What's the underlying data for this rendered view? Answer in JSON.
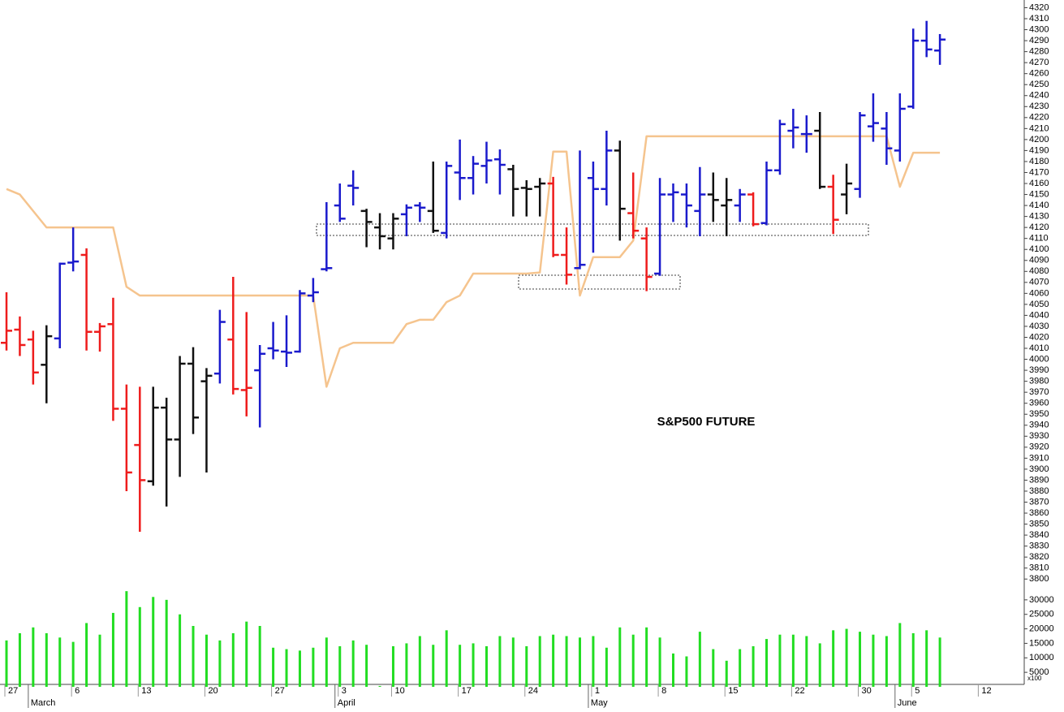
{
  "chart_data": {
    "type": "ohlc",
    "title": "S&P500 FUTURE",
    "categories": [
      "27",
      null,
      null,
      null,
      null,
      "6",
      null,
      null,
      null,
      null,
      "13",
      null,
      null,
      null,
      null,
      "20",
      null,
      null,
      null,
      null,
      "27",
      null,
      null,
      null,
      null,
      "3",
      null,
      null,
      null,
      "10",
      null,
      null,
      null,
      null,
      "17",
      null,
      null,
      null,
      null,
      "24",
      null,
      null,
      null,
      null,
      "1",
      null,
      null,
      null,
      null,
      "8",
      null,
      null,
      null,
      null,
      "15",
      null,
      null,
      null,
      null,
      "22",
      null,
      null,
      null,
      null,
      "30",
      null,
      null,
      null,
      "5",
      null,
      null,
      null,
      null,
      "12",
      null,
      null,
      null
    ],
    "month_labels": [
      null,
      null,
      "March",
      null,
      null,
      null,
      null,
      null,
      null,
      null,
      null,
      null,
      null,
      null,
      null,
      null,
      null,
      null,
      null,
      null,
      null,
      null,
      null,
      null,
      null,
      "April",
      null,
      null,
      null,
      null,
      null,
      null,
      null,
      null,
      null,
      null,
      null,
      null,
      null,
      null,
      null,
      null,
      null,
      null,
      "May",
      null,
      null,
      null,
      null,
      null,
      null,
      null,
      null,
      null,
      null,
      null,
      null,
      null,
      null,
      null,
      null,
      null,
      null,
      null,
      null,
      null,
      null,
      "June",
      null,
      null,
      null,
      null,
      null,
      null,
      null,
      null,
      null
    ],
    "ylim": [
      3795,
      4327
    ],
    "yticks": [
      3800,
      3810,
      3820,
      3830,
      3840,
      3850,
      3860,
      3870,
      3880,
      3890,
      3900,
      3910,
      3920,
      3930,
      3940,
      3950,
      3960,
      3970,
      3980,
      3990,
      4000,
      4010,
      4020,
      4030,
      4040,
      4050,
      4060,
      4070,
      4080,
      4090,
      4100,
      4110,
      4120,
      4130,
      4140,
      4150,
      4160,
      4170,
      4180,
      4190,
      4200,
      4210,
      4220,
      4230,
      4240,
      4250,
      4260,
      4270,
      4280,
      4290,
      4300,
      4310,
      4320
    ],
    "open": [
      4015,
      4027,
      4018,
      3995,
      4019,
      4088,
      4095,
      4025,
      4032,
      3955,
      3922,
      3889,
      3956,
      3927,
      3996,
      3980,
      3987,
      4018,
      3972,
      3990,
      4010,
      4007,
      4007,
      4058,
      4082,
      4140,
      4158,
      4135,
      4120,
      4110,
      4132,
      4140,
      4135,
      4115,
      4170,
      4165,
      4176,
      4182,
      4173,
      4156,
      4157,
      4160,
      4095,
      4083,
      4165,
      4155,
      4190,
      4133,
      4110,
      4078,
      4150,
      4150,
      4135,
      4150,
      4140,
      4140,
      4150,
      4124,
      4172,
      4208,
      4205,
      4208,
      4157,
      4150,
      4155,
      4212,
      4210,
      4190,
      4230,
      4290,
      4281,
      null,
      null,
      null,
      null,
      null,
      null
    ],
    "high": [
      4061,
      4039,
      4026,
      4031,
      4088,
      4120,
      4101,
      4033,
      4056,
      3977,
      3975,
      3975,
      3965,
      4003,
      4011,
      3992,
      4045,
      4075,
      4043,
      4013,
      4034,
      4040,
      4063,
      4074,
      4143,
      4160,
      4172,
      4137,
      4133,
      4133,
      4141,
      4143,
      4180,
      4180,
      4200,
      4185,
      4198,
      4191,
      4177,
      4163,
      4165,
      4166,
      4120,
      4190,
      4180,
      4208,
      4199,
      4170,
      4120,
      4165,
      4160,
      4160,
      4175,
      4170,
      4165,
      4155,
      4152,
      4180,
      4218,
      4228,
      4222,
      4225,
      4168,
      4178,
      4225,
      4242,
      4225,
      4242,
      4301,
      4308,
      4296,
      null,
      null,
      null,
      null,
      null,
      null
    ],
    "low": [
      4008,
      4003,
      3977,
      3960,
      4010,
      4080,
      4008,
      4007,
      3944,
      3880,
      3843,
      3885,
      3866,
      3893,
      3932,
      3897,
      3978,
      3968,
      3948,
      3938,
      4000,
      3993,
      4006,
      4052,
      4080,
      4125,
      4140,
      4102,
      4100,
      4100,
      4112,
      4125,
      4115,
      4110,
      4145,
      4150,
      4160,
      4150,
      4130,
      4130,
      4130,
      4093,
      4068,
      4082,
      4097,
      4140,
      4108,
      4110,
      4062,
      4076,
      4125,
      4120,
      4112,
      4125,
      4112,
      4125,
      4121,
      4122,
      4168,
      4192,
      4188,
      4155,
      4114,
      4132,
      4147,
      4198,
      4177,
      4180,
      4228,
      4275,
      4268,
      null,
      null,
      null,
      null,
      null,
      null
    ],
    "close": [
      4026,
      4013,
      3988,
      4021,
      4087,
      4089,
      4025,
      4030,
      3955,
      3897,
      3890,
      3956,
      3927,
      3996,
      3947,
      3985,
      4034,
      3973,
      3974,
      4005,
      4008,
      4006,
      4060,
      4061,
      4083,
      4128,
      4156,
      4125,
      4112,
      4128,
      4138,
      4138,
      4117,
      4176,
      4165,
      4178,
      4181,
      4177,
      4155,
      4155,
      4160,
      4095,
      4077,
      4086,
      4155,
      4190,
      4137,
      4117,
      4075,
      4150,
      4152,
      4140,
      4150,
      4145,
      4145,
      4150,
      4123,
      4172,
      4214,
      4211,
      4205,
      4157,
      4127,
      4160,
      4222,
      4215,
      4192,
      4228,
      4290,
      4282,
      4291,
      null,
      null,
      null,
      null,
      null,
      null
    ],
    "colors": [
      "#ee1c1c",
      "#ee1c1c",
      "#ee1c1c",
      "#111111",
      "#1a1acc",
      "#1a1acc",
      "#ee1c1c",
      "#ee1c1c",
      "#ee1c1c",
      "#ee1c1c",
      "#ee1c1c",
      "#111111",
      "#111111",
      "#111111",
      "#111111",
      "#111111",
      "#1a1acc",
      "#ee1c1c",
      "#ee1c1c",
      "#1a1acc",
      "#1a1acc",
      "#1a1acc",
      "#1a1acc",
      "#1a1acc",
      "#1a1acc",
      "#1a1acc",
      "#1a1acc",
      "#111111",
      "#111111",
      "#111111",
      "#1a1acc",
      "#1a1acc",
      "#111111",
      "#1a1acc",
      "#1a1acc",
      "#1a1acc",
      "#1a1acc",
      "#1a1acc",
      "#111111",
      "#111111",
      "#111111",
      "#ee1c1c",
      "#ee1c1c",
      "#1a1acc",
      "#1a1acc",
      "#1a1acc",
      "#111111",
      "#ee1c1c",
      "#ee1c1c",
      "#1a1acc",
      "#1a1acc",
      "#1a1acc",
      "#1a1acc",
      "#111111",
      "#111111",
      "#1a1acc",
      "#ee1c1c",
      "#1a1acc",
      "#1a1acc",
      "#1a1acc",
      "#1a1acc",
      "#111111",
      "#ee1c1c",
      "#111111",
      "#1a1acc",
      "#1a1acc",
      "#1a1acc",
      "#1a1acc",
      "#1a1acc",
      "#1a1acc",
      "#1a1acc",
      null,
      null,
      null,
      null,
      null,
      null
    ],
    "line": {
      "color": "#f5c48e",
      "values": [
        4155,
        4150,
        4135,
        4120,
        4120,
        4120,
        4120,
        4120,
        4120,
        4066,
        4058,
        4058,
        4058,
        4058,
        4058,
        4058,
        4058,
        4058,
        4058,
        4058,
        4058,
        4058,
        4058,
        4058,
        3975,
        4010,
        4015,
        4015,
        4015,
        4015,
        4032,
        4036,
        4036,
        4052,
        4058,
        4078,
        4078,
        4078,
        4078,
        4078,
        4079,
        4189,
        4189,
        4058,
        4093,
        4093,
        4093,
        4108,
        4203,
        4203,
        4203,
        4203,
        4203,
        4203,
        4203,
        4203,
        4203,
        4203,
        4203,
        4203,
        4203,
        4203,
        4203,
        4203,
        4203,
        4203,
        4203,
        4157,
        4188,
        4188,
        4188,
        null,
        null,
        null,
        null,
        null,
        null
      ]
    },
    "volume": {
      "color": "#22dd22",
      "ylim": [
        0,
        35000
      ],
      "yticks": [
        5000,
        10000,
        15000,
        20000,
        25000,
        30000
      ],
      "unit_label": "x100",
      "values": [
        16000,
        18500,
        20500,
        18500,
        17000,
        15500,
        22000,
        18000,
        25500,
        33000,
        27500,
        31000,
        30000,
        25000,
        21000,
        18000,
        16000,
        18500,
        22500,
        21000,
        13500,
        13000,
        12500,
        13500,
        17000,
        14000,
        16000,
        14500,
        300,
        14000,
        15000,
        17500,
        14500,
        19500,
        14500,
        15000,
        14000,
        17500,
        17000,
        14000,
        17500,
        18000,
        17500,
        17000,
        17500,
        13500,
        20500,
        18000,
        20500,
        17000,
        11500,
        10500,
        19000,
        13000,
        9000,
        13000,
        14000,
        16500,
        18000,
        18000,
        17500,
        15000,
        19500,
        20000,
        19000,
        18000,
        17500,
        22000,
        18500,
        19500,
        17000,
        null,
        null,
        null,
        null,
        null,
        null
      ]
    }
  }
}
